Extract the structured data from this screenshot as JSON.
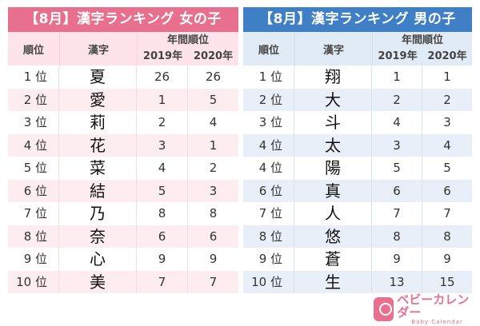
{
  "girls": {
    "title": "【8月】漢字ランキング 女の子",
    "headers": {
      "rank": "順位",
      "kanji": "漢字",
      "annual": "年間順位",
      "y2019": "2019年",
      "y2020": "2020年"
    },
    "rows": [
      {
        "rank": "1 位",
        "kanji": "夏",
        "y2019": "26",
        "y2020": "26"
      },
      {
        "rank": "2 位",
        "kanji": "愛",
        "y2019": "1",
        "y2020": "5"
      },
      {
        "rank": "3 位",
        "kanji": "莉",
        "y2019": "2",
        "y2020": "4"
      },
      {
        "rank": "4 位",
        "kanji": "花",
        "y2019": "3",
        "y2020": "1"
      },
      {
        "rank": "5 位",
        "kanji": "菜",
        "y2019": "4",
        "y2020": "2"
      },
      {
        "rank": "6 位",
        "kanji": "結",
        "y2019": "5",
        "y2020": "3"
      },
      {
        "rank": "7 位",
        "kanji": "乃",
        "y2019": "8",
        "y2020": "8"
      },
      {
        "rank": "8 位",
        "kanji": "奈",
        "y2019": "6",
        "y2020": "6"
      },
      {
        "rank": "9 位",
        "kanji": "心",
        "y2019": "9",
        "y2020": "9"
      },
      {
        "rank": "10 位",
        "kanji": "美",
        "y2019": "7",
        "y2020": "7"
      }
    ]
  },
  "boys": {
    "title": "【8月】漢字ランキング 男の子",
    "headers": {
      "rank": "順位",
      "kanji": "漢字",
      "annual": "年間順位",
      "y2019": "2019年",
      "y2020": "2020年"
    },
    "rows": [
      {
        "rank": "1 位",
        "kanji": "翔",
        "y2019": "1",
        "y2020": "1"
      },
      {
        "rank": "2 位",
        "kanji": "大",
        "y2019": "2",
        "y2020": "2"
      },
      {
        "rank": "3 位",
        "kanji": "斗",
        "y2019": "4",
        "y2020": "3"
      },
      {
        "rank": "4 位",
        "kanji": "太",
        "y2019": "3",
        "y2020": "4"
      },
      {
        "rank": "4 位",
        "kanji": "陽",
        "y2019": "5",
        "y2020": "5"
      },
      {
        "rank": "6 位",
        "kanji": "真",
        "y2019": "6",
        "y2020": "6"
      },
      {
        "rank": "7 位",
        "kanji": "人",
        "y2019": "7",
        "y2020": "7"
      },
      {
        "rank": "8 位",
        "kanji": "悠",
        "y2019": "8",
        "y2020": "8"
      },
      {
        "rank": "9 位",
        "kanji": "蒼",
        "y2019": "9",
        "y2020": "9"
      },
      {
        "rank": "10 位",
        "kanji": "生",
        "y2019": "13",
        "y2020": "15"
      }
    ]
  },
  "logo": {
    "jp": "ベビーカレンダー",
    "en": "Baby Calendar",
    "icon": "calendar-baby-icon"
  },
  "colors": {
    "girl_accent": "#e8708e",
    "boy_accent": "#3e7fc6"
  }
}
